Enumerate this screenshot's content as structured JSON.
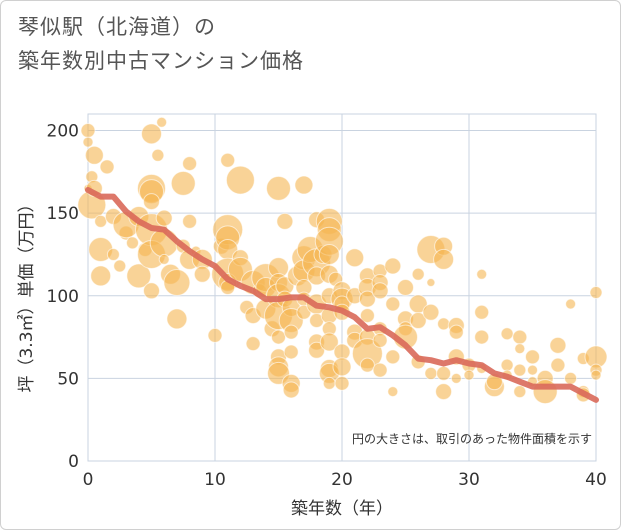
{
  "title_line1": "琴似駅（北海道）の",
  "title_line2": "築年数別中古マンション価格",
  "chart_data": {
    "type": "scatter",
    "xlabel": "築年数（年）",
    "ylabel": "坪（3.3㎡）単価（万円）",
    "xlim": [
      0,
      40
    ],
    "ylim": [
      0,
      210
    ],
    "xticks": [
      0,
      10,
      20,
      30,
      40
    ],
    "yticks": [
      0,
      50,
      100,
      150,
      200
    ],
    "grid": true,
    "note": "円の大きさは、取引のあった物件面積を示す",
    "bubble_color": "#f5b651",
    "line_color": "#d9695a",
    "trend": {
      "x": [
        0,
        1,
        2,
        3,
        4,
        5,
        6,
        7,
        8,
        9,
        10,
        11,
        12,
        13,
        14,
        15,
        16,
        17,
        18,
        19,
        20,
        21,
        22,
        23,
        24,
        25,
        26,
        27,
        28,
        29,
        30,
        31,
        32,
        33,
        34,
        35,
        36,
        37,
        38,
        39,
        40
      ],
      "y": [
        164,
        160,
        160,
        151,
        145,
        141,
        140,
        133,
        127,
        122,
        118,
        110,
        106,
        103,
        98,
        98,
        99,
        99,
        94,
        93,
        91,
        87,
        80,
        81,
        76,
        70,
        62,
        61,
        59,
        61,
        59,
        58,
        53,
        51,
        48,
        45,
        45,
        45,
        45,
        41,
        37
      ]
    },
    "points": [
      [
        0,
        200,
        7
      ],
      [
        0,
        193,
        5
      ],
      [
        0.5,
        185,
        9
      ],
      [
        0.3,
        172,
        6
      ],
      [
        0,
        165,
        4
      ],
      [
        0.3,
        155,
        14
      ],
      [
        1,
        145,
        6
      ],
      [
        1,
        128,
        12
      ],
      [
        1,
        112,
        10
      ],
      [
        0.5,
        165,
        8
      ],
      [
        1.5,
        178,
        7
      ],
      [
        2,
        148,
        8
      ],
      [
        2,
        125,
        6
      ],
      [
        2.5,
        118,
        6
      ],
      [
        3,
        138,
        7
      ],
      [
        3,
        143,
        13
      ],
      [
        3.5,
        132,
        6
      ],
      [
        4,
        112,
        12
      ],
      [
        4,
        148,
        10
      ],
      [
        4.5,
        128,
        7
      ],
      [
        5,
        198,
        10
      ],
      [
        5,
        165,
        14
      ],
      [
        5,
        163,
        12
      ],
      [
        5,
        157,
        8
      ],
      [
        5,
        140,
        16
      ],
      [
        5,
        125,
        14
      ],
      [
        5,
        103,
        8
      ],
      [
        5.5,
        185,
        6
      ],
      [
        5.8,
        205,
        5
      ],
      [
        6,
        132,
        14
      ],
      [
        6,
        147,
        8
      ],
      [
        6,
        122,
        5
      ],
      [
        6.5,
        113,
        10
      ],
      [
        7,
        108,
        13
      ],
      [
        7,
        86,
        10
      ],
      [
        7.5,
        168,
        12
      ],
      [
        7.5,
        130,
        7
      ],
      [
        8,
        122,
        10
      ],
      [
        8,
        145,
        7
      ],
      [
        8,
        180,
        7
      ],
      [
        8.5,
        127,
        5
      ],
      [
        9,
        122,
        10
      ],
      [
        9,
        113,
        8
      ],
      [
        10,
        76,
        7
      ],
      [
        10.5,
        130,
        8
      ],
      [
        11,
        182,
        7
      ],
      [
        11,
        140,
        15
      ],
      [
        11,
        135,
        12
      ],
      [
        11,
        128,
        10
      ],
      [
        11,
        113,
        16
      ],
      [
        11,
        108,
        9
      ],
      [
        11,
        105,
        7
      ],
      [
        12,
        170,
        14
      ],
      [
        12,
        123,
        8
      ],
      [
        12,
        116,
        12
      ],
      [
        12.5,
        93,
        7
      ],
      [
        13,
        71,
        7
      ],
      [
        13,
        88,
        8
      ],
      [
        13,
        108,
        12
      ],
      [
        13.5,
        103,
        7
      ],
      [
        14,
        111,
        14
      ],
      [
        14,
        105,
        10
      ],
      [
        14,
        92,
        10
      ],
      [
        14.5,
        80,
        8
      ],
      [
        15,
        165,
        12
      ],
      [
        15,
        117,
        10
      ],
      [
        15,
        108,
        9
      ],
      [
        15,
        100,
        12
      ],
      [
        15,
        88,
        14
      ],
      [
        15,
        75,
        7
      ],
      [
        15,
        63,
        8
      ],
      [
        15,
        57,
        10
      ],
      [
        15,
        53,
        11
      ],
      [
        15.5,
        145,
        8
      ],
      [
        15.5,
        106,
        9
      ],
      [
        15.5,
        98,
        8
      ],
      [
        16,
        93,
        9
      ],
      [
        16,
        85,
        12
      ],
      [
        16,
        78,
        7
      ],
      [
        16,
        66,
        7
      ],
      [
        16,
        47,
        9
      ],
      [
        16,
        43,
        8
      ],
      [
        16.5,
        112,
        10
      ],
      [
        17,
        167,
        9
      ],
      [
        17,
        123,
        12
      ],
      [
        17,
        115,
        11
      ],
      [
        17,
        105,
        8
      ],
      [
        17,
        98,
        7
      ],
      [
        17,
        90,
        7
      ],
      [
        17.5,
        128,
        13
      ],
      [
        18,
        146,
        8
      ],
      [
        18,
        120,
        14
      ],
      [
        18,
        112,
        9
      ],
      [
        18,
        95,
        10
      ],
      [
        18,
        85,
        7
      ],
      [
        18,
        72,
        8
      ],
      [
        18,
        67,
        8
      ],
      [
        18.5,
        125,
        9
      ],
      [
        19,
        145,
        13
      ],
      [
        19,
        140,
        12
      ],
      [
        19,
        133,
        14
      ],
      [
        19,
        125,
        10
      ],
      [
        19,
        113,
        9
      ],
      [
        19,
        100,
        8
      ],
      [
        19,
        88,
        8
      ],
      [
        19,
        80,
        7
      ],
      [
        19,
        72,
        9
      ],
      [
        19,
        56,
        9
      ],
      [
        19,
        53,
        10
      ],
      [
        19,
        47,
        6
      ],
      [
        19.5,
        110,
        7
      ],
      [
        20,
        103,
        9
      ],
      [
        20,
        98,
        11
      ],
      [
        20,
        95,
        8
      ],
      [
        20,
        90,
        8
      ],
      [
        20,
        66,
        8
      ],
      [
        20,
        57,
        9
      ],
      [
        20,
        47,
        7
      ],
      [
        21,
        123,
        9
      ],
      [
        21,
        100,
        8
      ],
      [
        21,
        78,
        8
      ],
      [
        21,
        73,
        8
      ],
      [
        22,
        112,
        8
      ],
      [
        22,
        105,
        9
      ],
      [
        22,
        98,
        8
      ],
      [
        22,
        88,
        7
      ],
      [
        22,
        75,
        8
      ],
      [
        22,
        65,
        15
      ],
      [
        22,
        58,
        7
      ],
      [
        23,
        115,
        7
      ],
      [
        23,
        108,
        8
      ],
      [
        23,
        103,
        8
      ],
      [
        23,
        80,
        7
      ],
      [
        23,
        73,
        7
      ],
      [
        23,
        55,
        7
      ],
      [
        24,
        118,
        8
      ],
      [
        24,
        95,
        7
      ],
      [
        24,
        63,
        7
      ],
      [
        24,
        42,
        5
      ],
      [
        25,
        105,
        8
      ],
      [
        25,
        86,
        8
      ],
      [
        25,
        80,
        7
      ],
      [
        25,
        75,
        12
      ],
      [
        26,
        113,
        6
      ],
      [
        26,
        95,
        9
      ],
      [
        26,
        85,
        8
      ],
      [
        26,
        60,
        7
      ],
      [
        27,
        128,
        14
      ],
      [
        27,
        108,
        4
      ],
      [
        27,
        90,
        8
      ],
      [
        27,
        53,
        6
      ],
      [
        28,
        130,
        9
      ],
      [
        28,
        122,
        10
      ],
      [
        28,
        83,
        6
      ],
      [
        28,
        53,
        7
      ],
      [
        28,
        42,
        8
      ],
      [
        29,
        82,
        8
      ],
      [
        29,
        78,
        7
      ],
      [
        29,
        63,
        8
      ],
      [
        29,
        50,
        5
      ],
      [
        30,
        58,
        7
      ],
      [
        30,
        52,
        5
      ],
      [
        31,
        113,
        5
      ],
      [
        31,
        90,
        7
      ],
      [
        31,
        75,
        7
      ],
      [
        31,
        56,
        5
      ],
      [
        32,
        45,
        10
      ],
      [
        32,
        48,
        8
      ],
      [
        33,
        77,
        6
      ],
      [
        33,
        58,
        6
      ],
      [
        33,
        52,
        5
      ],
      [
        34,
        75,
        7
      ],
      [
        34,
        68,
        5
      ],
      [
        34,
        55,
        6
      ],
      [
        34,
        42,
        6
      ],
      [
        35,
        63,
        7
      ],
      [
        35,
        55,
        5
      ],
      [
        35,
        48,
        5
      ],
      [
        36,
        50,
        8
      ],
      [
        36,
        42,
        12
      ],
      [
        37,
        70,
        8
      ],
      [
        37,
        58,
        7
      ],
      [
        38,
        95,
        5
      ],
      [
        38,
        50,
        6
      ],
      [
        39,
        62,
        6
      ],
      [
        39,
        42,
        6
      ],
      [
        39,
        40,
        7
      ],
      [
        40,
        102,
        6
      ],
      [
        40,
        63,
        11
      ],
      [
        40,
        55,
        6
      ],
      [
        40,
        52,
        5
      ]
    ]
  }
}
